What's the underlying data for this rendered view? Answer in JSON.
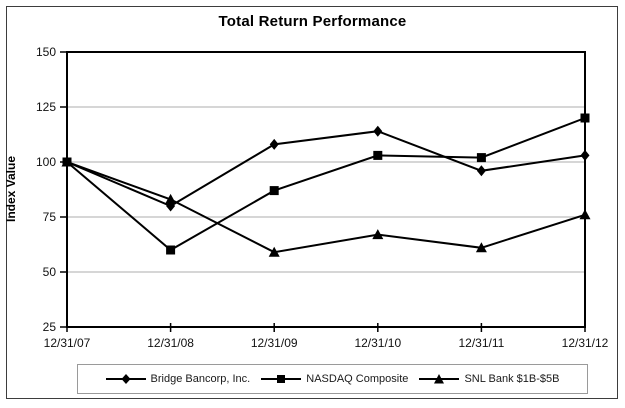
{
  "chart": {
    "title": "Total Return Performance",
    "ylabel": "Index Value"
  },
  "chart_data": {
    "type": "line",
    "title": "Total Return Performance",
    "xlabel": "",
    "ylabel": "Index Value",
    "categories": [
      "12/31/07",
      "12/31/08",
      "12/31/09",
      "12/31/10",
      "12/31/11",
      "12/31/12"
    ],
    "series": [
      {
        "name": "Bridge Bancorp, Inc.",
        "marker": "diamond",
        "values": [
          100,
          80,
          108,
          114,
          96,
          103
        ]
      },
      {
        "name": "NASDAQ Composite",
        "marker": "square",
        "values": [
          100,
          60,
          87,
          103,
          102,
          120
        ]
      },
      {
        "name": "SNL Bank $1B-$5B",
        "marker": "triangle",
        "values": [
          100,
          83,
          59,
          67,
          61,
          76
        ]
      }
    ],
    "ylim": [
      25,
      150
    ],
    "yticks": [
      150,
      125,
      100,
      75,
      50,
      25
    ],
    "gridlines": [
      125,
      100,
      75,
      50
    ],
    "grid": "horizontal-only",
    "legend_position": "bottom",
    "colors": {
      "line": "#000000",
      "marker": "#000000",
      "grid": "#c8c8c8",
      "axis": "#000000",
      "text": "#111111"
    }
  }
}
